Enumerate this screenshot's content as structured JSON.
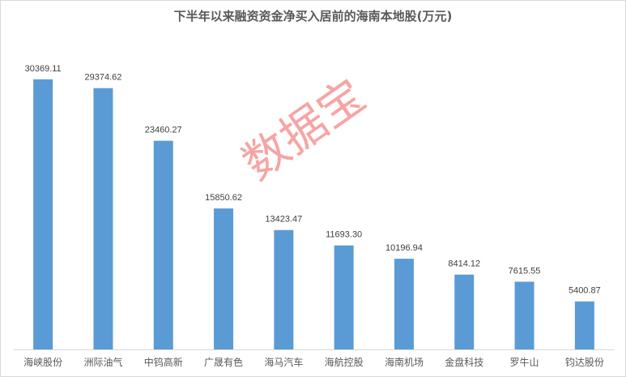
{
  "chart_data": {
    "type": "bar",
    "title": "下半年以来融资资金净买入居前的海南本地股(万元)",
    "categories": [
      "海峡股份",
      "洲际油气",
      "中钨高新",
      "广晟有色",
      "海马汽车",
      "海航控股",
      "海南机场",
      "金盘科技",
      "罗牛山",
      "钧达股份"
    ],
    "values": [
      30369.11,
      29374.62,
      23460.27,
      15850.62,
      13423.47,
      11693.3,
      10196.94,
      8414.12,
      7615.55,
      5400.87
    ],
    "value_labels": [
      "30369.11",
      "29374.62",
      "23460.27",
      "15850.62",
      "13423.47",
      "11693.30",
      "10196.94",
      "8414.12",
      "7615.55",
      "5400.87"
    ],
    "xlabel": "",
    "ylabel": "",
    "ylim": [
      0,
      35000
    ],
    "grid": false,
    "bar_color": "#5b9bd5"
  },
  "watermark": "数据宝"
}
